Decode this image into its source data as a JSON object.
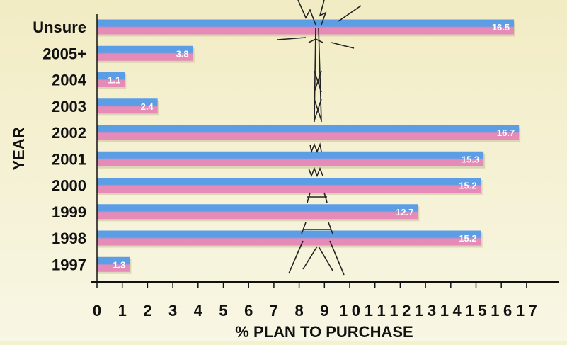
{
  "chart_data": {
    "type": "bar",
    "orientation": "horizontal",
    "title": "",
    "xlabel": "% PLAN TO PURCHASE",
    "ylabel": "YEAR",
    "categories": [
      "Unsure",
      "2005+",
      "2004",
      "2003",
      "2002",
      "2001",
      "2000",
      "1999",
      "1998",
      "1997"
    ],
    "values": [
      16.5,
      3.8,
      1.1,
      2.4,
      16.7,
      15.3,
      15.2,
      12.7,
      15.2,
      1.3
    ],
    "value_labels": [
      "16.5",
      "3.8",
      "1.1",
      "2.4",
      "16.7",
      "15.3",
      "15.2",
      "12.7",
      "15.2",
      "1.3"
    ],
    "xlim": [
      0,
      17
    ],
    "xticks": [
      "0",
      "1",
      "2",
      "3",
      "4",
      "5",
      "6",
      "7",
      "8",
      "9",
      "10",
      "11",
      "12",
      "13",
      "14",
      "15",
      "16",
      "17"
    ],
    "grid": false,
    "colors": {
      "bar_top": "#5c9ee6",
      "bar_bottom": "#e68ab8",
      "background_top": "#f2ecc4",
      "background_bottom": "#f8f6e4",
      "text": "#111111",
      "value_label": "#ffffff"
    }
  }
}
